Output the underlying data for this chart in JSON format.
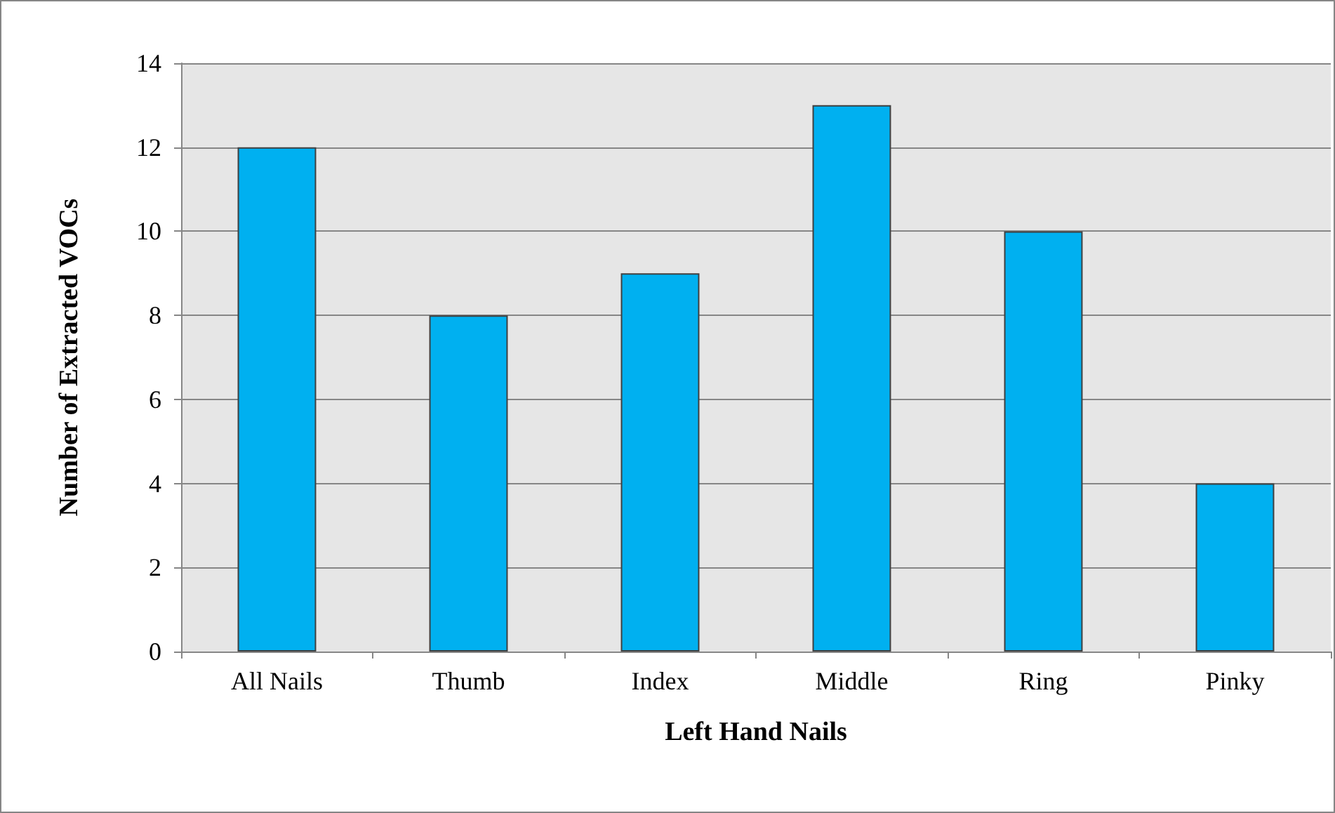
{
  "chart_data": {
    "type": "bar",
    "xlabel": "Left Hand Nails",
    "ylabel": "Number of Extracted VOCs",
    "categories": [
      "All Nails",
      "Thumb",
      "Index",
      "Middle",
      "Ring",
      "Pinky"
    ],
    "values": [
      12,
      8,
      9,
      13,
      10,
      4
    ],
    "color": "#00b0f0",
    "ylim": [
      0,
      14
    ],
    "yticks": [
      0,
      2,
      4,
      6,
      8,
      10,
      12,
      14
    ],
    "grid": "y"
  }
}
